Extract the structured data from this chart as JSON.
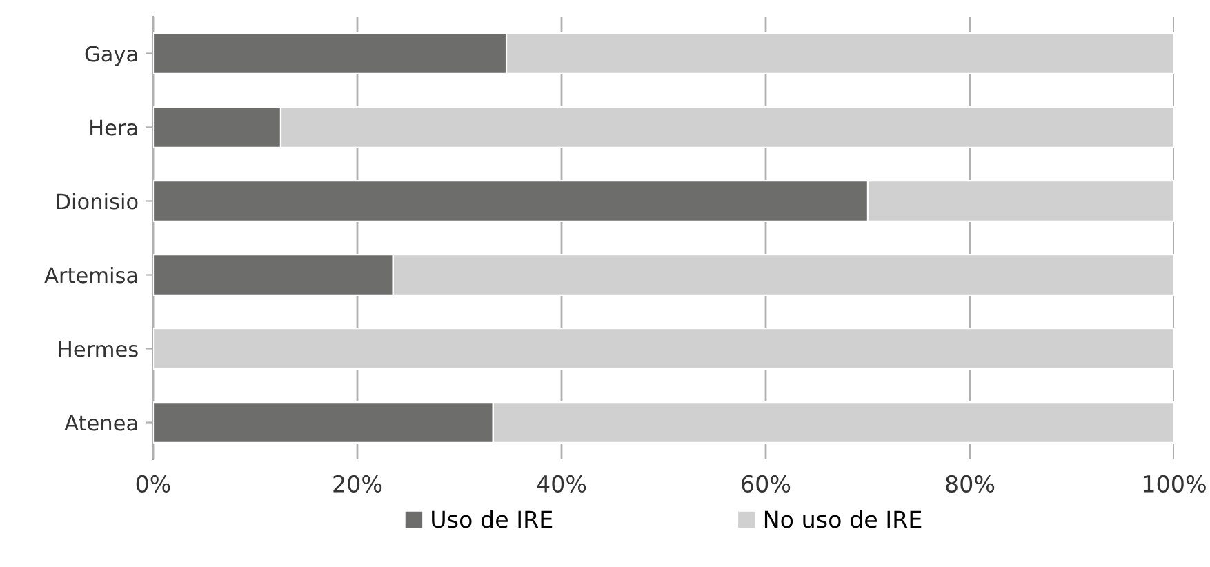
{
  "chart_data": {
    "type": "bar",
    "orientation": "horizontal",
    "stacked": true,
    "categories": [
      "Gaya",
      "Hera",
      "Dionisio",
      "Artemisa",
      "Hermes",
      "Atenea"
    ],
    "series": [
      {
        "name": "Uso de IRE",
        "color": "#6d6d6b",
        "values": [
          34.6,
          12.5,
          70.0,
          23.5,
          0,
          33.3
        ]
      },
      {
        "name": "No uso de IRE",
        "color": "#d0d0d0",
        "values": [
          65.4,
          87.5,
          30.0,
          76.5,
          100,
          66.7
        ]
      }
    ],
    "xlim": [
      0,
      100
    ],
    "xticks": [
      {
        "value": 0,
        "label": "0%"
      },
      {
        "value": 20,
        "label": "20%"
      },
      {
        "value": 40,
        "label": "40%"
      },
      {
        "value": 60,
        "label": "60%"
      },
      {
        "value": 80,
        "label": "80%"
      },
      {
        "value": 100,
        "label": "100%"
      }
    ],
    "grid": "x",
    "legend": "bottom"
  }
}
